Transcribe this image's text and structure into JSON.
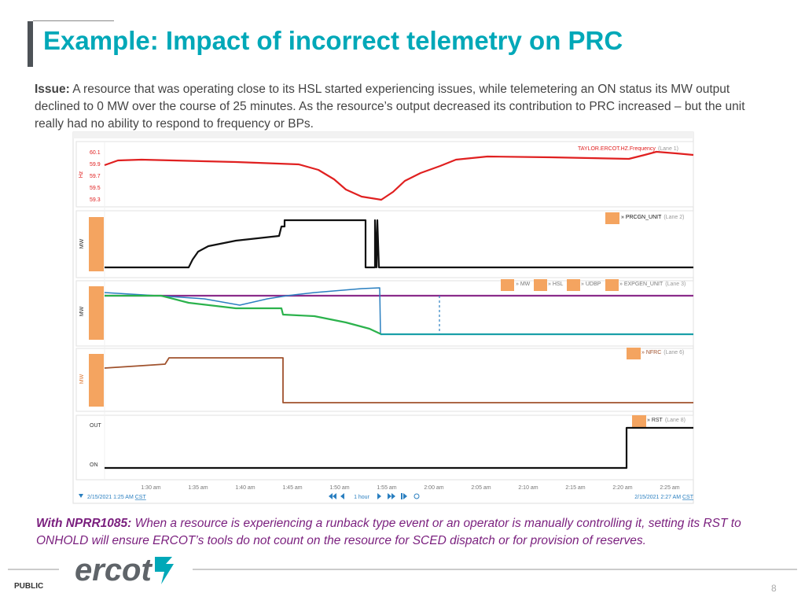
{
  "title": "Example: Impact of incorrect telemetry on PRC",
  "issue": {
    "label": "Issue:",
    "text": "A resource that was operating close to its HSL started experiencing issues, while telemetering an ON status its MW output declined to 0 MW over the course of 25 minutes. As the resource’s output decreased its contribution to PRC increased – but the unit really had no ability to respond to frequency or BPs."
  },
  "screenshot": {
    "lanes": [
      {
        "axis": "Hz",
        "ticks": [
          "60.1",
          "59.9",
          "59.7",
          "59.5",
          "59.3"
        ],
        "legend": [
          "TAYLOR.ERCOT.HZ.Frequency"
        ],
        "lane": "(Lane 1)"
      },
      {
        "axis": "MW",
        "legend": [
          "» PRCGN_UNIT"
        ],
        "lane": "(Lane 2)"
      },
      {
        "axis": "MW",
        "legend": [
          "» MW",
          "» HSL",
          "» UDBP",
          "» EXPGEN_UNIT"
        ],
        "lane": "(Lane 3)"
      },
      {
        "axis": "MW",
        "legend": [
          "» NFRC"
        ],
        "lane": "(Lane 6)"
      },
      {
        "ticks": [
          "OUT",
          "ON"
        ],
        "legend": [
          "» RST"
        ],
        "lane": "(Lane 8)"
      }
    ],
    "times": [
      "1:30 am",
      "1:35 am",
      "1:40 am",
      "1:45 am",
      "1:50 am",
      "1:55 am",
      "2:00 am",
      "2:05 am",
      "2:10 am",
      "2:15 am",
      "2:20 am",
      "2:25 am"
    ],
    "start": "2/15/2021 1:25 AM",
    "end": "2/15/2021 2:27 AM",
    "tz": "CST",
    "span": "1 hour"
  },
  "note": {
    "label": "With NPRR1085:",
    "text": "When a resource is experiencing a runback type event or an operator is manually controlling it, setting its RST to ONHOLD will ensure ERCOT’s tools do not count on the resource for SCED dispatch or for provision of reserves."
  },
  "footer": {
    "logo": "ercot",
    "classification": "PUBLIC",
    "page": "8"
  }
}
